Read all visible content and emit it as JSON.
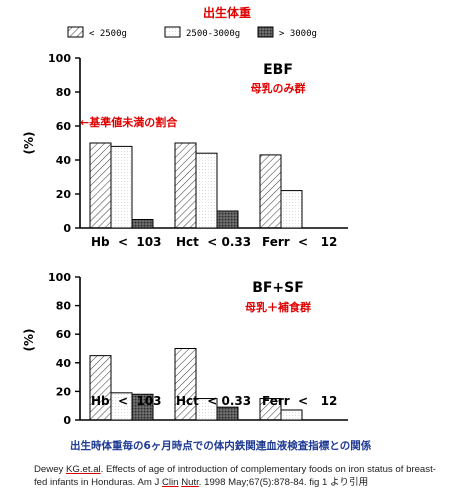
{
  "legend": {
    "title": "出生体重",
    "items": [
      {
        "label": "< 2500g",
        "pattern": "hatch"
      },
      {
        "label": "2500-3000g",
        "pattern": "dots"
      },
      {
        "label": "> 3000g",
        "pattern": "dark"
      }
    ]
  },
  "annotation": "←基準値未満の割合",
  "chart_data": [
    {
      "type": "bar",
      "title": "EBF",
      "subtitle": "母乳のみ群",
      "ylabel": "(%)",
      "ylim": [
        0,
        100
      ],
      "yticks": [
        "0",
        "20",
        "40",
        "60",
        "80",
        "100"
      ],
      "categories": [
        "Hb  <  103",
        "Hct  < 0.33",
        "Ferr  <   12"
      ],
      "series": [
        {
          "name": "< 2500g",
          "values": [
            50,
            50,
            43
          ]
        },
        {
          "name": "2500-3000g",
          "values": [
            48,
            44,
            22
          ]
        },
        {
          "name": "> 3000g",
          "values": [
            5,
            10,
            0
          ]
        }
      ]
    },
    {
      "type": "bar",
      "title": "BF+SF",
      "subtitle": "母乳＋補食群",
      "ylabel": "(%)",
      "ylim": [
        0,
        100
      ],
      "yticks": [
        "0",
        "20",
        "40",
        "60",
        "80",
        "100"
      ],
      "categories": [
        "Hb  <  103",
        "Hct  < 0.33",
        "Ferr  <   12"
      ],
      "series": [
        {
          "name": "< 2500g",
          "values": [
            45,
            50,
            15
          ]
        },
        {
          "name": "2500-3000g",
          "values": [
            19,
            15,
            7
          ]
        },
        {
          "name": "> 3000g",
          "values": [
            18,
            9,
            0
          ]
        }
      ]
    }
  ],
  "caption": "出生時体重毎の6ヶ月時点での体内鉄関連血液検査指標との関係",
  "citation": {
    "part1": "Dewey ",
    "author_u": "KG.et.al",
    "part2": ". Effects of age of introduction of complementary foods on iron status of breast-fed infants in Honduras. Am J ",
    "clin_u": "Clin",
    "part3": " ",
    "nutr_u": "Nutr",
    "part4": ". 1998 May;67(5):878-84.  fig 1 より引用"
  },
  "colors": {
    "title_red": "#e00000",
    "caption_blue": "#1f3a93",
    "dark_bar": "#555555"
  }
}
